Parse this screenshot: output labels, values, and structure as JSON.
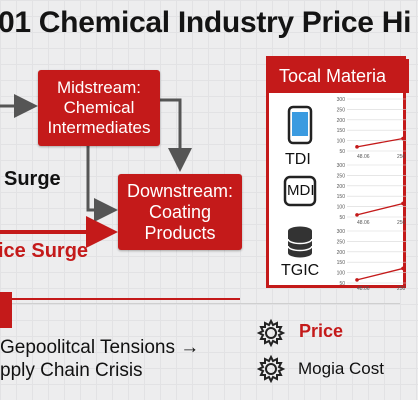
{
  "header": {
    "title": "01 Chemical Industry Price Hi"
  },
  "flow": {
    "midstream_label": "Midstream: Chemical Intermediates",
    "midstream_lines": [
      "Midstream:",
      "Chemical",
      "Intermediates"
    ],
    "downstream_lines": [
      "Downstream:",
      "Coating",
      "Products"
    ],
    "surge_label": "Surge",
    "price_surge_label": "ice Surge"
  },
  "panel": {
    "title": "Tocal Materia",
    "materials": [
      {
        "name": "TDI",
        "icon": "phone-icon"
      },
      {
        "name": "MDI",
        "icon": "mdi-box-icon"
      },
      {
        "name": "TGIC",
        "icon": "database-icon"
      }
    ],
    "mini_chart_ticks": [
      "300",
      "250",
      "200",
      "150",
      "100",
      "50"
    ],
    "mini_chart_x": [
      "48.06",
      "250"
    ]
  },
  "chart_data": [
    {
      "type": "line",
      "title": "",
      "x": [
        "48.06",
        "250"
      ],
      "series": [
        {
          "values": [
            70,
            110
          ]
        }
      ]
    },
    {
      "type": "line",
      "title": "",
      "x": [
        "48.06",
        "250"
      ],
      "series": [
        {
          "values": [
            60,
            115
          ]
        }
      ]
    },
    {
      "type": "line",
      "title": "",
      "x": [
        "48.06",
        "250"
      ],
      "series": [
        {
          "values": [
            65,
            120
          ]
        }
      ]
    }
  ],
  "bottom": {
    "line1": "Gepoolitcal Tensions →",
    "line2": "pply Chain Crisis",
    "legend_price": "Price",
    "legend_cost": "Mogia Cost",
    "price_color": "#c41a1a"
  }
}
